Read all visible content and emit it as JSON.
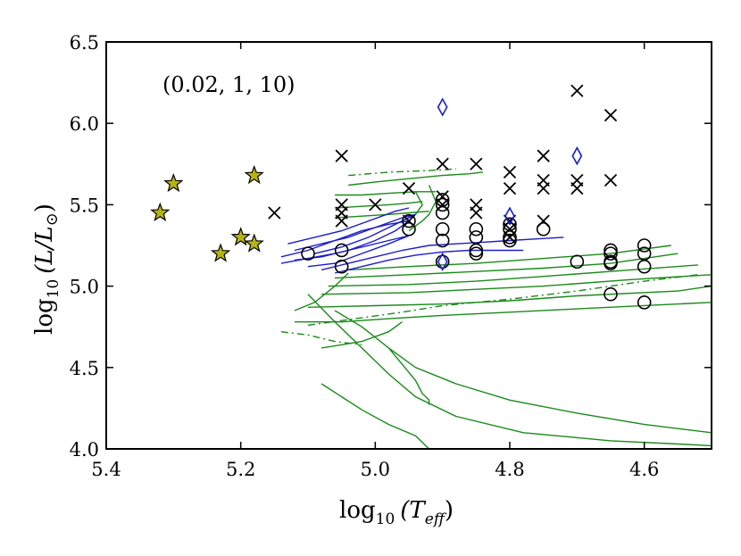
{
  "chart_data": {
    "type": "scatter",
    "annotation": "(0.02, 1, 10)",
    "xlabel_main": "log",
    "xlabel_sub": "10",
    "xlabel_arg": "(T",
    "xlabel_arg_sub": "eff",
    "xlabel_close": ")",
    "ylabel_main": "log",
    "ylabel_sub": "10",
    "ylabel_arg": "(L/L",
    "ylabel_sun": "⊙",
    "ylabel_close": ")",
    "xlim": [
      5.4,
      4.5
    ],
    "ylim": [
      4.0,
      6.5
    ],
    "xticks": [
      5.4,
      5.2,
      5.0,
      4.8,
      4.6
    ],
    "xtick_labels": [
      "5.4",
      "5.2",
      "5.0",
      "4.8",
      "4.6"
    ],
    "yticks": [
      4.0,
      4.5,
      5.0,
      5.5,
      6.0,
      6.5
    ],
    "ytick_labels": [
      "4.0",
      "4.5",
      "5.0",
      "5.5",
      "6.0",
      "6.5"
    ],
    "grid": false,
    "colors": {
      "track_green": "#1a8a1a",
      "track_blue": "#1c1ccc",
      "star_fill": "#b5b512",
      "diamond": "#1c1ccc",
      "marker": "#000000"
    },
    "stars": [
      {
        "x": 5.32,
        "y": 5.45
      },
      {
        "x": 5.3,
        "y": 5.63
      },
      {
        "x": 5.18,
        "y": 5.68
      },
      {
        "x": 5.2,
        "y": 5.3
      },
      {
        "x": 5.18,
        "y": 5.26
      },
      {
        "x": 5.23,
        "y": 5.2
      }
    ],
    "crosses": [
      {
        "x": 5.15,
        "y": 5.45
      },
      {
        "x": 5.05,
        "y": 5.8
      },
      {
        "x": 5.05,
        "y": 5.5
      },
      {
        "x": 5.05,
        "y": 5.45
      },
      {
        "x": 5.05,
        "y": 5.4
      },
      {
        "x": 5.0,
        "y": 5.5
      },
      {
        "x": 4.95,
        "y": 5.6
      },
      {
        "x": 4.95,
        "y": 5.4
      },
      {
        "x": 4.9,
        "y": 5.75
      },
      {
        "x": 4.9,
        "y": 5.55
      },
      {
        "x": 4.9,
        "y": 5.5
      },
      {
        "x": 4.85,
        "y": 5.75
      },
      {
        "x": 4.85,
        "y": 5.5
      },
      {
        "x": 4.85,
        "y": 5.45
      },
      {
        "x": 4.8,
        "y": 5.7
      },
      {
        "x": 4.8,
        "y": 5.6
      },
      {
        "x": 4.8,
        "y": 5.4
      },
      {
        "x": 4.8,
        "y": 5.35
      },
      {
        "x": 4.8,
        "y": 5.3
      },
      {
        "x": 4.75,
        "y": 5.8
      },
      {
        "x": 4.75,
        "y": 5.65
      },
      {
        "x": 4.75,
        "y": 5.6
      },
      {
        "x": 4.75,
        "y": 5.4
      },
      {
        "x": 4.7,
        "y": 6.2
      },
      {
        "x": 4.7,
        "y": 5.65
      },
      {
        "x": 4.7,
        "y": 5.6
      },
      {
        "x": 4.65,
        "y": 6.05
      },
      {
        "x": 4.65,
        "y": 5.65
      }
    ],
    "circles": [
      {
        "x": 5.1,
        "y": 5.2
      },
      {
        "x": 5.05,
        "y": 5.22
      },
      {
        "x": 5.05,
        "y": 5.12
      },
      {
        "x": 4.95,
        "y": 5.4
      },
      {
        "x": 4.95,
        "y": 5.35
      },
      {
        "x": 4.9,
        "y": 5.53
      },
      {
        "x": 4.9,
        "y": 5.5
      },
      {
        "x": 4.9,
        "y": 5.45
      },
      {
        "x": 4.9,
        "y": 5.35
      },
      {
        "x": 4.9,
        "y": 5.28
      },
      {
        "x": 4.9,
        "y": 5.15
      },
      {
        "x": 4.85,
        "y": 5.35
      },
      {
        "x": 4.85,
        "y": 5.3
      },
      {
        "x": 4.85,
        "y": 5.22
      },
      {
        "x": 4.85,
        "y": 5.2
      },
      {
        "x": 4.8,
        "y": 5.38
      },
      {
        "x": 4.8,
        "y": 5.35
      },
      {
        "x": 4.8,
        "y": 5.3
      },
      {
        "x": 4.8,
        "y": 5.28
      },
      {
        "x": 4.75,
        "y": 5.35
      },
      {
        "x": 4.7,
        "y": 5.15
      },
      {
        "x": 4.65,
        "y": 5.22
      },
      {
        "x": 4.65,
        "y": 5.2
      },
      {
        "x": 4.65,
        "y": 5.15
      },
      {
        "x": 4.65,
        "y": 5.14
      },
      {
        "x": 4.65,
        "y": 4.95
      },
      {
        "x": 4.6,
        "y": 5.25
      },
      {
        "x": 4.6,
        "y": 5.2
      },
      {
        "x": 4.6,
        "y": 5.12
      },
      {
        "x": 4.6,
        "y": 4.9
      }
    ],
    "diamonds": [
      {
        "x": 4.9,
        "y": 6.1
      },
      {
        "x": 4.7,
        "y": 5.8
      },
      {
        "x": 4.8,
        "y": 5.43
      },
      {
        "x": 4.9,
        "y": 5.15
      }
    ],
    "green_tracks": [
      [
        [
          5.04,
          5.62
        ],
        [
          5.0,
          5.64
        ],
        [
          4.95,
          5.66
        ],
        [
          4.9,
          5.68
        ],
        [
          4.86,
          5.69
        ],
        [
          4.84,
          5.7
        ]
      ],
      [
        [
          5.06,
          5.56
        ],
        [
          5.02,
          5.56
        ],
        [
          4.98,
          5.57
        ],
        [
          4.94,
          5.58
        ],
        [
          4.91,
          5.58
        ]
      ],
      [
        [
          5.06,
          5.48
        ],
        [
          5.02,
          5.49
        ],
        [
          4.98,
          5.5
        ],
        [
          4.95,
          5.51
        ],
        [
          4.93,
          5.52
        ]
      ],
      [
        [
          5.06,
          5.42
        ],
        [
          5.02,
          5.43
        ],
        [
          4.98,
          5.44
        ],
        [
          4.95,
          5.45
        ],
        [
          4.92,
          5.46
        ]
      ],
      [
        [
          4.94,
          5.58
        ],
        [
          4.93,
          5.5
        ],
        [
          4.94,
          5.44
        ],
        [
          4.96,
          5.4
        ],
        [
          4.98,
          5.36
        ]
      ],
      [
        [
          4.92,
          5.62
        ],
        [
          4.91,
          5.52
        ],
        [
          4.92,
          5.44
        ],
        [
          4.93,
          5.4
        ],
        [
          4.95,
          5.34
        ]
      ],
      [
        [
          5.04,
          5.1
        ],
        [
          4.95,
          5.12
        ],
        [
          4.85,
          5.14
        ],
        [
          4.75,
          5.17
        ],
        [
          4.65,
          5.2
        ],
        [
          4.56,
          5.25
        ]
      ],
      [
        [
          5.06,
          5.05
        ],
        [
          4.95,
          5.07
        ],
        [
          4.85,
          5.09
        ],
        [
          4.75,
          5.11
        ],
        [
          4.65,
          5.14
        ],
        [
          4.55,
          5.2
        ]
      ],
      [
        [
          5.07,
          5.0
        ],
        [
          4.95,
          5.01
        ],
        [
          4.85,
          5.03
        ],
        [
          4.75,
          5.06
        ],
        [
          4.62,
          5.1
        ],
        [
          4.52,
          5.13
        ]
      ],
      [
        [
          5.08,
          4.95
        ],
        [
          4.95,
          4.96
        ],
        [
          4.85,
          4.98
        ],
        [
          4.75,
          5.0
        ],
        [
          4.62,
          5.04
        ],
        [
          4.5,
          5.07
        ]
      ],
      [
        [
          5.1,
          4.87
        ],
        [
          5.0,
          4.88
        ],
        [
          4.9,
          4.89
        ],
        [
          4.8,
          4.91
        ],
        [
          4.7,
          4.94
        ],
        [
          4.55,
          4.97
        ],
        [
          4.5,
          5.0
        ]
      ],
      [
        [
          5.12,
          4.78
        ],
        [
          5.05,
          4.78
        ],
        [
          4.98,
          4.8
        ],
        [
          4.9,
          4.82
        ],
        [
          4.8,
          4.84
        ],
        [
          4.7,
          4.86
        ],
        [
          4.5,
          4.9
        ]
      ],
      [
        [
          5.06,
          4.85
        ],
        [
          5.02,
          4.75
        ],
        [
          4.98,
          4.62
        ],
        [
          4.94,
          4.5
        ],
        [
          4.88,
          4.4
        ],
        [
          4.8,
          4.3
        ],
        [
          4.7,
          4.22
        ],
        [
          4.6,
          4.15
        ],
        [
          4.5,
          4.1
        ]
      ],
      [
        [
          5.1,
          4.95
        ],
        [
          5.06,
          4.78
        ],
        [
          5.02,
          4.62
        ],
        [
          4.98,
          4.46
        ],
        [
          4.94,
          4.32
        ],
        [
          4.88,
          4.2
        ],
        [
          4.78,
          4.1
        ],
        [
          4.65,
          4.05
        ],
        [
          4.55,
          4.03
        ],
        [
          4.5,
          4.02
        ]
      ],
      [
        [
          5.08,
          4.4
        ],
        [
          5.05,
          4.32
        ],
        [
          5.02,
          4.24
        ],
        [
          4.98,
          4.15
        ],
        [
          4.94,
          4.08
        ],
        [
          4.92,
          4.0
        ]
      ],
      [
        [
          4.98,
          4.62
        ],
        [
          4.96,
          4.52
        ],
        [
          4.94,
          4.42
        ],
        [
          4.93,
          4.34
        ],
        [
          4.92,
          4.3
        ],
        [
          4.92,
          4.27
        ]
      ],
      [
        [
          5.08,
          4.62
        ],
        [
          5.05,
          4.64
        ],
        [
          5.02,
          4.66
        ],
        [
          4.98,
          4.72
        ],
        [
          4.96,
          4.78
        ]
      ],
      [
        [
          5.12,
          4.85
        ],
        [
          5.09,
          4.9
        ],
        [
          5.06,
          5.0
        ],
        [
          5.04,
          5.08
        ]
      ]
    ],
    "green_dashed_tracks": [
      [
        [
          5.04,
          5.68
        ],
        [
          4.98,
          5.7
        ],
        [
          4.92,
          5.71
        ],
        [
          4.88,
          5.72
        ]
      ],
      [
        [
          5.1,
          4.76
        ],
        [
          5.03,
          4.8
        ],
        [
          4.96,
          4.84
        ],
        [
          4.9,
          4.88
        ],
        [
          4.8,
          4.92
        ],
        [
          4.7,
          4.97
        ],
        [
          4.6,
          5.03
        ],
        [
          4.52,
          5.07
        ]
      ],
      [
        [
          5.14,
          4.72
        ],
        [
          5.1,
          4.7
        ],
        [
          5.06,
          4.66
        ],
        [
          5.02,
          4.64
        ]
      ]
    ],
    "blue_tracks": [
      [
        [
          5.14,
          5.18
        ],
        [
          5.1,
          5.22
        ],
        [
          5.06,
          5.28
        ],
        [
          5.02,
          5.34
        ],
        [
          4.98,
          5.38
        ],
        [
          4.95,
          5.4
        ],
        [
          4.97,
          5.34
        ],
        [
          5.0,
          5.28
        ],
        [
          5.04,
          5.22
        ],
        [
          5.08,
          5.18
        ],
        [
          5.12,
          5.16
        ]
      ],
      [
        [
          5.12,
          5.22
        ],
        [
          5.08,
          5.26
        ],
        [
          5.04,
          5.3
        ],
        [
          5.0,
          5.36
        ],
        [
          4.96,
          5.42
        ],
        [
          4.94,
          5.44
        ],
        [
          4.97,
          5.38
        ],
        [
          5.01,
          5.3
        ],
        [
          5.05,
          5.24
        ],
        [
          5.09,
          5.2
        ]
      ],
      [
        [
          5.14,
          5.14
        ],
        [
          5.1,
          5.17
        ],
        [
          5.06,
          5.2
        ],
        [
          5.02,
          5.24
        ],
        [
          4.98,
          5.28
        ],
        [
          4.95,
          5.31
        ],
        [
          4.98,
          5.26
        ],
        [
          5.02,
          5.2
        ],
        [
          5.06,
          5.14
        ],
        [
          5.1,
          5.12
        ]
      ],
      [
        [
          5.13,
          5.26
        ],
        [
          5.09,
          5.3
        ],
        [
          5.05,
          5.34
        ],
        [
          5.01,
          5.4
        ],
        [
          4.97,
          5.46
        ],
        [
          4.95,
          5.48
        ]
      ],
      [
        [
          5.08,
          5.1
        ],
        [
          5.04,
          5.14
        ],
        [
          5.0,
          5.18
        ],
        [
          4.96,
          5.22
        ],
        [
          4.92,
          5.25
        ],
        [
          4.88,
          5.26
        ],
        [
          4.84,
          5.27
        ],
        [
          4.8,
          5.28
        ],
        [
          4.76,
          5.29
        ],
        [
          4.72,
          5.3
        ]
      ],
      [
        [
          5.06,
          5.08
        ],
        [
          5.02,
          5.12
        ],
        [
          4.98,
          5.16
        ],
        [
          4.94,
          5.19
        ],
        [
          4.9,
          5.21
        ],
        [
          4.86,
          5.22
        ],
        [
          4.82,
          5.22
        ],
        [
          4.78,
          5.22
        ]
      ]
    ]
  }
}
